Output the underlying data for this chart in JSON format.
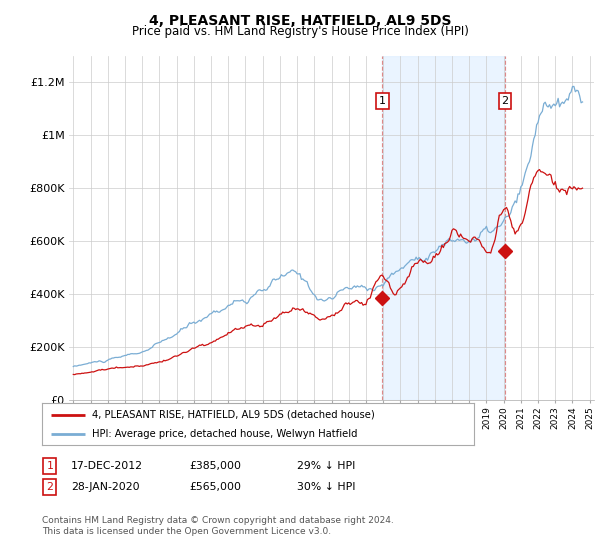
{
  "title": "4, PLEASANT RISE, HATFIELD, AL9 5DS",
  "subtitle": "Price paid vs. HM Land Registry's House Price Index (HPI)",
  "title_fontsize": 10,
  "subtitle_fontsize": 8.5,
  "hpi_color": "#7aadd4",
  "hpi_fill_color": "#ddeeff",
  "price_color": "#cc1111",
  "background_color": "#ffffff",
  "ylim": [
    0,
    1300000
  ],
  "yticks": [
    0,
    200000,
    400000,
    600000,
    800000,
    1000000,
    1200000
  ],
  "ytick_labels": [
    "£0",
    "£200K",
    "£400K",
    "£600K",
    "£800K",
    "£1M",
    "£1.2M"
  ],
  "purchase1_year": 2012.96,
  "purchase1_price": 385000,
  "purchase2_year": 2020.08,
  "purchase2_price": 565000,
  "legend1": "4, PLEASANT RISE, HATFIELD, AL9 5DS (detached house)",
  "legend2": "HPI: Average price, detached house, Welwyn Hatfield",
  "table_row1": [
    "1",
    "17-DEC-2012",
    "£385,000",
    "29% ↓ HPI"
  ],
  "table_row2": [
    "2",
    "28-JAN-2020",
    "£565,000",
    "30% ↓ HPI"
  ],
  "footnote": "Contains HM Land Registry data © Crown copyright and database right 2024.\nThis data is licensed under the Open Government Licence v3.0."
}
